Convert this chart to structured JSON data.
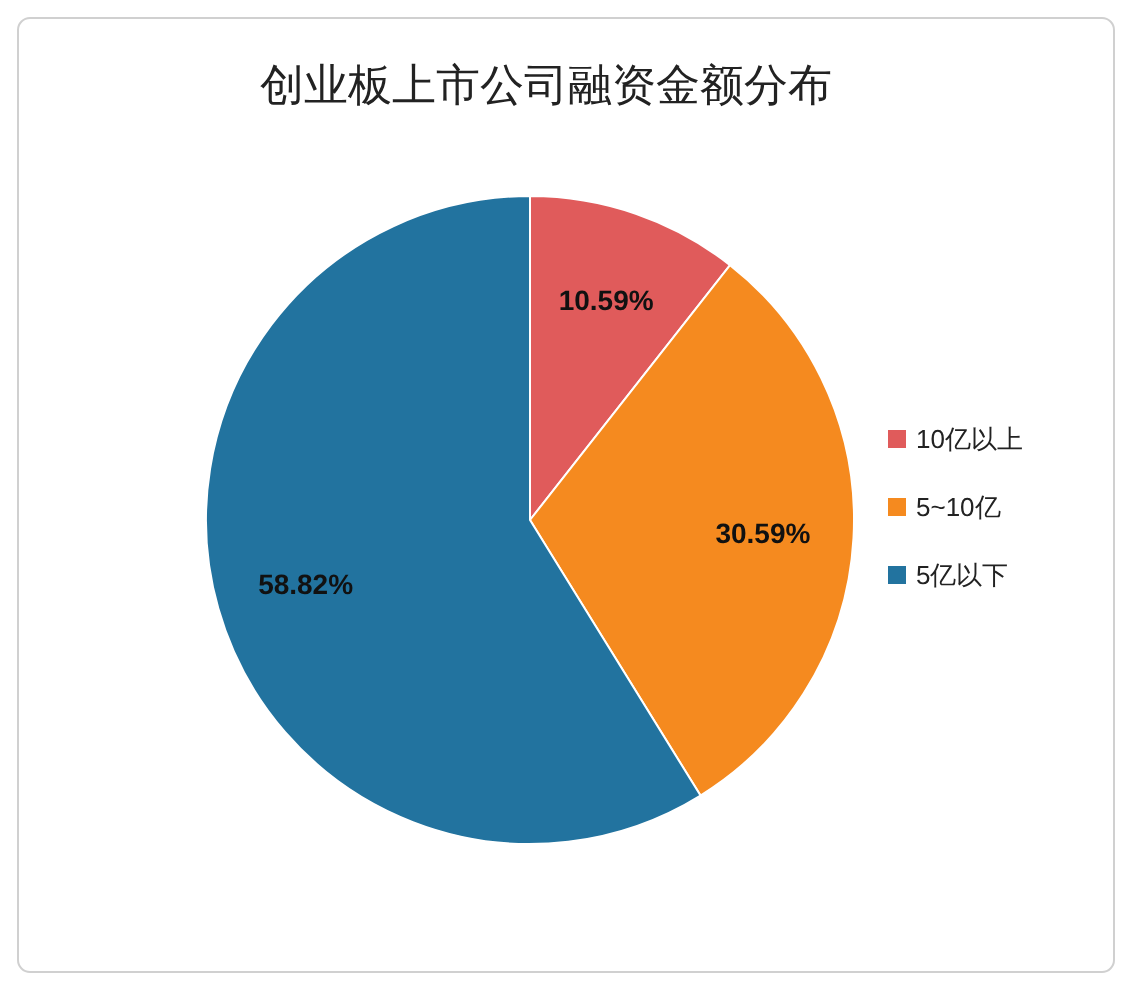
{
  "chart_data": {
    "type": "pie",
    "title": "创业板上市公司融资金额分布",
    "categories": [
      "10亿以上",
      "5~10亿",
      "5亿以下"
    ],
    "values": [
      10.59,
      30.59,
      58.82
    ],
    "colors": [
      "#e05b5b",
      "#f58a1f",
      "#22739f"
    ],
    "value_labels": [
      "10.59%",
      "30.59%",
      "58.82%"
    ],
    "legend": "right"
  }
}
